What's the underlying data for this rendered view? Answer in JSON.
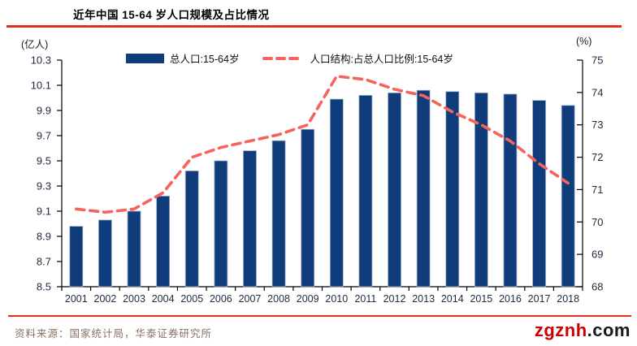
{
  "title": "近年中国 15-64 岁人口规模及占比情况",
  "axis_unit_left": "(亿人)",
  "axis_unit_right": "(%)",
  "legend": {
    "bars_label": "总人口:15-64岁",
    "line_label": "人口结构:占总人口比例:15-64岁"
  },
  "footer": {
    "source": "资料来源：国家统计局，华泰证券研究所",
    "watermark_red": "zgznh",
    "watermark_black": ".com"
  },
  "colors": {
    "bar": "#113c7c",
    "bar_edge": "#9fb0c7",
    "line": "#f4645c",
    "axis": "#000000",
    "tick_text": "#1f2a40",
    "title_rule": "#e0301e",
    "watermark_red": "#cc0000",
    "source_text": "#8b7164"
  },
  "chart_data": {
    "type": "bar+line",
    "categories": [
      "2001",
      "2002",
      "2003",
      "2004",
      "2005",
      "2006",
      "2007",
      "2008",
      "2009",
      "2010",
      "2011",
      "2012",
      "2013",
      "2014",
      "2015",
      "2016",
      "2017",
      "2018"
    ],
    "series": [
      {
        "name": "总人口:15-64岁",
        "type": "bar",
        "axis": "left",
        "unit": "亿人",
        "values": [
          8.98,
          9.03,
          9.1,
          9.22,
          9.42,
          9.5,
          9.58,
          9.66,
          9.75,
          9.99,
          10.02,
          10.04,
          10.06,
          10.05,
          10.04,
          10.03,
          9.98,
          9.94
        ]
      },
      {
        "name": "人口结构:占总人口比例:15-64岁",
        "type": "line-dashed",
        "axis": "right",
        "unit": "%",
        "values": [
          70.4,
          70.3,
          70.4,
          70.9,
          72.0,
          72.3,
          72.5,
          72.7,
          73.0,
          74.5,
          74.4,
          74.1,
          73.9,
          73.4,
          73.0,
          72.5,
          71.8,
          71.2
        ]
      }
    ],
    "left_axis": {
      "min": 8.5,
      "max": 10.3,
      "step": 0.2,
      "label": "(亿人)"
    },
    "right_axis": {
      "min": 68,
      "max": 75,
      "step": 1,
      "label": "(%)"
    },
    "grid": false,
    "legend_position": "top"
  }
}
